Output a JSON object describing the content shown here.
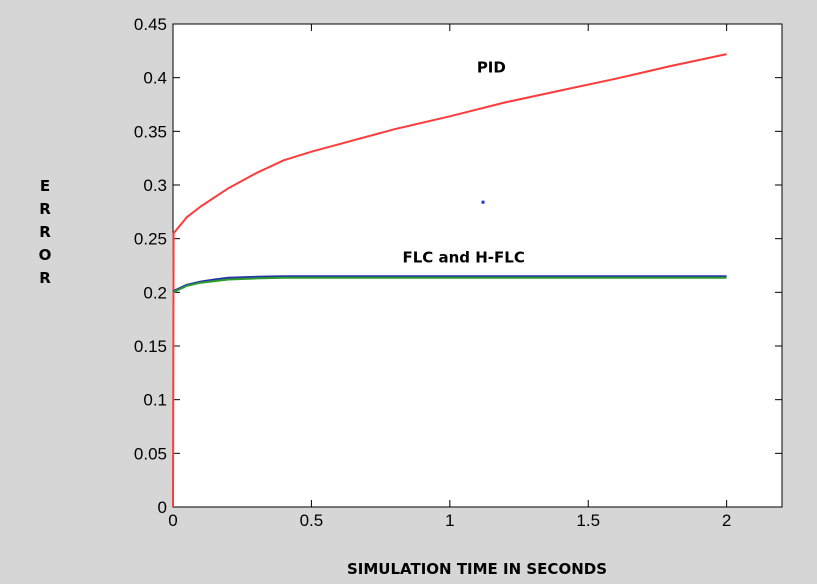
{
  "chart_data": {
    "type": "line",
    "title": "",
    "xlabel": "SIMULATION TIME IN SECONDS",
    "ylabel_letters": [
      "E",
      "R",
      "R",
      "O",
      "R"
    ],
    "xlim": [
      0,
      2.2
    ],
    "ylim": [
      0,
      0.45
    ],
    "x_ticks": [
      0,
      0.5,
      1,
      1.5,
      2
    ],
    "x_tick_labels": [
      "0",
      "0.5",
      "1",
      "1.5",
      "2"
    ],
    "y_ticks": [
      0,
      0.05,
      0.1,
      0.15,
      0.2,
      0.25,
      0.3,
      0.35,
      0.4,
      0.45
    ],
    "y_tick_labels": [
      "0",
      "0.05",
      "0.1",
      "0.15",
      "0.2",
      "0.25",
      "0.3",
      "0.35",
      "0.4",
      "0.45"
    ],
    "grid": false,
    "series": [
      {
        "color": "#ff3b3b",
        "x": [
          0,
          0.002,
          0.05,
          0.1,
          0.2,
          0.3,
          0.4,
          0.5,
          0.6,
          0.8,
          1.0,
          1.2,
          1.4,
          1.6,
          1.8,
          2.0
        ],
        "values": [
          0,
          0.255,
          0.27,
          0.28,
          0.297,
          0.311,
          0.323,
          0.331,
          0.338,
          0.352,
          0.364,
          0.377,
          0.388,
          0.399,
          0.411,
          0.422
        ]
      },
      {
        "color": "#2233aa",
        "x": [
          0,
          0.05,
          0.1,
          0.15,
          0.2,
          0.3,
          0.4,
          0.6,
          1.0,
          1.5,
          2.0
        ],
        "values": [
          0.201,
          0.207,
          0.21,
          0.212,
          0.2135,
          0.2145,
          0.215,
          0.215,
          0.215,
          0.215,
          0.215
        ]
      },
      {
        "color": "#2e9a2e",
        "x": [
          0,
          0.05,
          0.1,
          0.15,
          0.2,
          0.3,
          0.4,
          0.6,
          1.0,
          1.5,
          2.0
        ],
        "values": [
          0.2,
          0.206,
          0.209,
          0.2105,
          0.212,
          0.213,
          0.2135,
          0.2135,
          0.2135,
          0.2135,
          0.2135
        ]
      }
    ],
    "annotations": [
      {
        "text": "PID",
        "x": 1.15,
        "y": 0.405
      },
      {
        "text": "FLC and H-FLC",
        "x": 1.05,
        "y": 0.228
      }
    ],
    "stray_points": [
      {
        "x": 1.12,
        "y": 0.284,
        "color": "#2233cc"
      }
    ]
  }
}
